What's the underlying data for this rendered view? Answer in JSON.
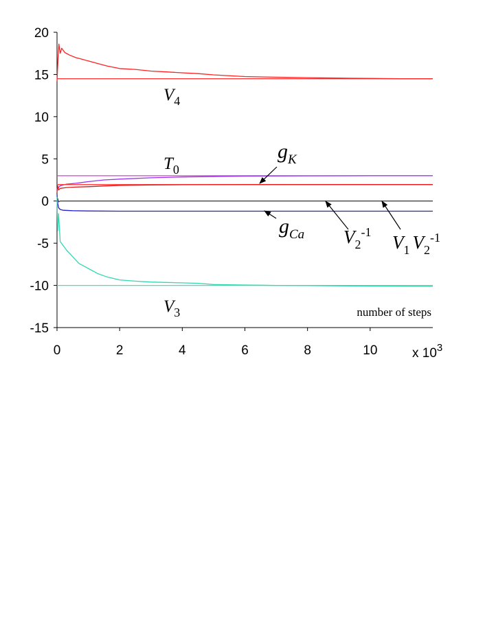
{
  "chart_data": {
    "type": "line",
    "title": "",
    "xlabel": "number of steps",
    "x_multiplier": "x 10",
    "x_multiplier_exp": "3",
    "xlim": [
      0,
      12
    ],
    "ylim": [
      -15,
      20
    ],
    "x_ticks": [
      "0",
      "2",
      "4",
      "6",
      "8",
      "10"
    ],
    "x_tick_values": [
      0,
      2,
      4,
      6,
      8,
      10
    ],
    "y_ticks": [
      "20",
      "15",
      "10",
      "5",
      "0",
      "-5",
      "-10",
      "-15"
    ],
    "y_tick_values": [
      20,
      15,
      10,
      5,
      0,
      -5,
      -10,
      -15
    ],
    "grid": false,
    "series": [
      {
        "id": "v4_target",
        "color": "#ff3333",
        "x": [
          0,
          12
        ],
        "y": [
          14.5,
          14.5
        ]
      },
      {
        "id": "v4",
        "color": "#ff2020",
        "x": [
          0,
          0.03,
          0.06,
          0.1,
          0.15,
          0.25,
          0.4,
          0.6,
          0.8,
          1.0,
          1.3,
          1.6,
          2.0,
          2.5,
          3.0,
          3.5,
          4.0,
          4.5,
          5.0,
          6.0,
          7.0,
          8.0,
          9.0,
          10.0,
          11.0,
          12.0
        ],
        "y": [
          14.2,
          16.8,
          18.6,
          17.5,
          18.1,
          17.6,
          17.3,
          17.0,
          16.8,
          16.6,
          16.3,
          16.0,
          15.7,
          15.6,
          15.4,
          15.3,
          15.2,
          15.1,
          14.95,
          14.75,
          14.68,
          14.62,
          14.57,
          14.53,
          14.5,
          14.5
        ]
      },
      {
        "id": "t0_target",
        "color": "#d040d0",
        "x": [
          0,
          12
        ],
        "y": [
          3.0,
          3.0
        ]
      },
      {
        "id": "gk",
        "color": "#9933ee",
        "x": [
          0,
          0.02,
          0.05,
          0.1,
          0.3,
          0.6,
          1.0,
          1.5,
          2.0,
          3.0,
          4.0,
          5.0,
          6.0,
          8.0,
          10.0,
          12.0
        ],
        "y": [
          1.3,
          1.7,
          1.6,
          1.8,
          2.0,
          2.1,
          2.3,
          2.5,
          2.6,
          2.75,
          2.85,
          2.9,
          2.95,
          2.98,
          3.0,
          3.0
        ]
      },
      {
        "id": "v2inv_target",
        "color": "#ff3333",
        "x": [
          0,
          12
        ],
        "y": [
          1.95,
          1.95
        ]
      },
      {
        "id": "v2inv",
        "color": "#e01515",
        "x": [
          0,
          0.02,
          0.05,
          0.1,
          0.3,
          0.6,
          1.0,
          1.5,
          2.0,
          3.0,
          4.0,
          6.0,
          8.0,
          12.0
        ],
        "y": [
          1.0,
          1.8,
          1.3,
          1.5,
          1.6,
          1.65,
          1.7,
          1.78,
          1.85,
          1.9,
          1.93,
          1.95,
          1.95,
          1.95
        ]
      },
      {
        "id": "v1v2inv",
        "color": "#444444",
        "x": [
          0,
          0.02,
          0.05,
          0.1,
          0.2,
          12
        ],
        "y": [
          -0.8,
          0.3,
          -0.1,
          0.0,
          0.0,
          0.0
        ]
      },
      {
        "id": "gca",
        "color": "#2222cc",
        "x": [
          0,
          0.02,
          0.05,
          0.1,
          0.2,
          0.5,
          1.0,
          2.0,
          4.0,
          6.0,
          8.0,
          12.0
        ],
        "y": [
          0.8,
          -0.2,
          -0.8,
          -1.0,
          -1.1,
          -1.15,
          -1.18,
          -1.2,
          -1.2,
          -1.2,
          -1.2,
          -1.2
        ]
      },
      {
        "id": "v3_target",
        "color": "#40e0b0",
        "x": [
          0,
          12
        ],
        "y": [
          -10.0,
          -10.0
        ]
      },
      {
        "id": "v3",
        "color": "#30d8b0",
        "x": [
          0,
          0.02,
          0.05,
          0.1,
          0.2,
          0.3,
          0.5,
          0.7,
          1.0,
          1.3,
          1.6,
          2.0,
          2.5,
          3.0,
          3.5,
          4.0,
          4.5,
          5.0,
          6.0,
          7.0,
          8.0,
          9.0,
          10.0,
          11.0,
          12.0
        ],
        "y": [
          0.5,
          -3.5,
          -1.5,
          -4.8,
          -5.3,
          -5.8,
          -6.6,
          -7.4,
          -8.0,
          -8.6,
          -9.0,
          -9.35,
          -9.5,
          -9.6,
          -9.65,
          -9.7,
          -9.75,
          -9.9,
          -9.95,
          -10.0,
          -10.02,
          -10.05,
          -10.08,
          -10.1,
          -10.12
        ]
      }
    ],
    "annotations": [
      {
        "id": "v4",
        "base": "V",
        "sub": "4",
        "sup": ""
      },
      {
        "id": "t0",
        "base": "T",
        "sub": "0",
        "sup": ""
      },
      {
        "id": "gk",
        "base": "g",
        "sub": "K",
        "sup": ""
      },
      {
        "id": "gca",
        "base": "g",
        "sub": "Ca",
        "sup": ""
      },
      {
        "id": "v2inv",
        "base": "V",
        "sub": "2",
        "sup": "-1"
      },
      {
        "id": "v1v2inv",
        "base": "V",
        "sub": "1",
        "base2": "V",
        "sub2": "2",
        "sup": "-1"
      },
      {
        "id": "v3",
        "base": "V",
        "sub": "3",
        "sup": ""
      }
    ]
  }
}
